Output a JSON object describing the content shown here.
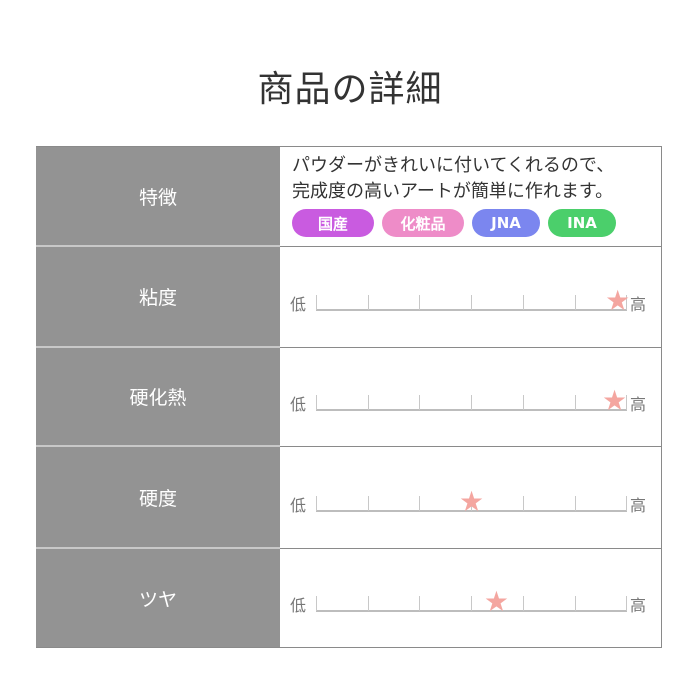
{
  "title": "商品の詳細",
  "features": {
    "label": "特徴",
    "description_lines": [
      "パウダーがきれいに付いてくれるので、",
      "完成度の高いアートが簡単に作れます。"
    ],
    "tags": [
      {
        "label": "国産",
        "color": "#c95be0"
      },
      {
        "label": "化粧品",
        "color": "#ee8cc8"
      },
      {
        "label": "JNA",
        "color": "#7b86ef"
      },
      {
        "label": "INA",
        "color": "#4bcf6b"
      }
    ]
  },
  "scale_low": "低",
  "scale_high": "高",
  "star_color": "#f4a6a0",
  "ratings": [
    {
      "label": "粘度",
      "level": 0.97
    },
    {
      "label": "硬化熱",
      "level": 0.96
    },
    {
      "label": "硬度",
      "level": 0.5
    },
    {
      "label": "ツヤ",
      "level": 0.58
    }
  ]
}
